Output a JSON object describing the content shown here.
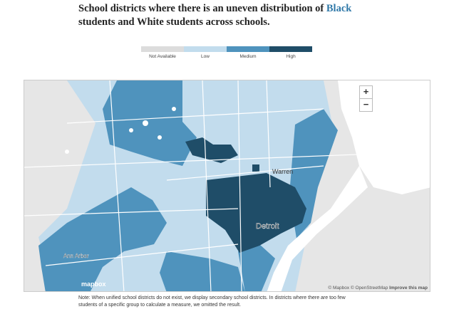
{
  "title": {
    "lines": [
      [
        "School districts where there is an uneven distribution of ",
        "Black"
      ],
      [
        "students and White students across schools."
      ]
    ],
    "highlight_color": "#2f78a8"
  },
  "legend": [
    {
      "label": "Not Available",
      "color": "#dcdcdc"
    },
    {
      "label": "Low",
      "color": "#c2dced"
    },
    {
      "label": "Medium",
      "color": "#4f93bd"
    },
    {
      "label": "High",
      "color": "#1f4d68"
    }
  ],
  "map": {
    "labels": [
      "Warren",
      "Detroit",
      "Ann Arbor"
    ],
    "zoom_in": "+",
    "zoom_out": "−",
    "logo": "mapbox",
    "attribution": "© Mapbox © OpenStreetMap",
    "improve": "Improve this map"
  },
  "note": [
    "Note: When unified school districts do not exist, we display secondary school districts. In districts where there are too few",
    "students of a specific group to calculate a measure, we omitted the result."
  ]
}
